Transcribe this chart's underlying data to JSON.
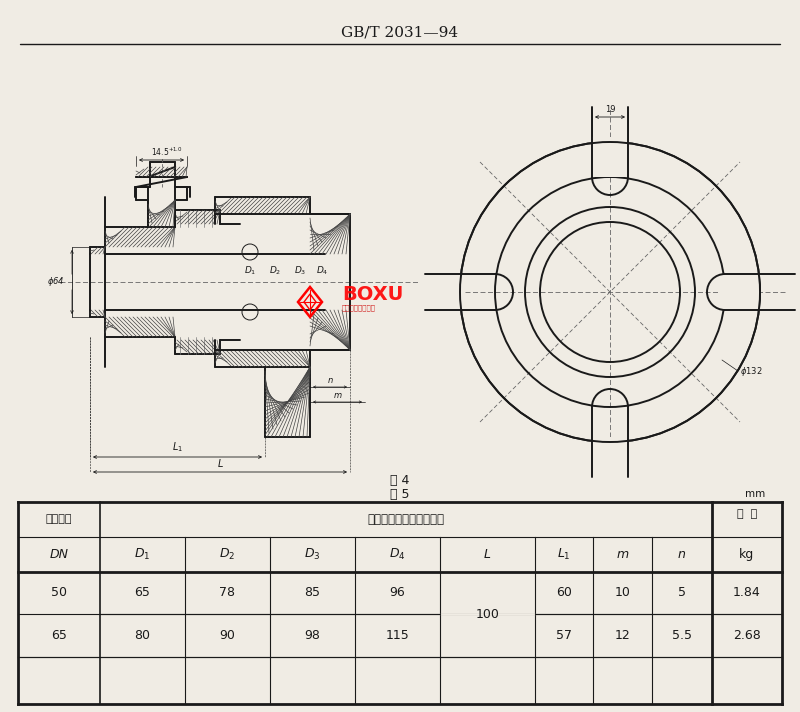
{
  "title": "GB/T 2031—94",
  "fig4_label": "图 4",
  "table5_label": "表 5",
  "unit_label": "mm",
  "bg_color": "#f0ece4",
  "table_data": [
    [
      "50",
      "65",
      "78",
      "85",
      "96",
      "100",
      "60",
      "10",
      "5",
      "1.84"
    ],
    [
      "65",
      "80",
      "90",
      "98",
      "115",
      "100",
      "57",
      "12",
      "5.5",
      "2.68"
    ]
  ],
  "line_color": "#1a1a1a",
  "cl_color": "#666666",
  "hatch_color": "#444444",
  "watermark_text": "BOXU",
  "watermark_sub": "博旭船用阀门制造",
  "dim_14_5": "14.5",
  "dim_19": "19",
  "dim_phi64": "φ64",
  "dim_phi132": "φ132"
}
